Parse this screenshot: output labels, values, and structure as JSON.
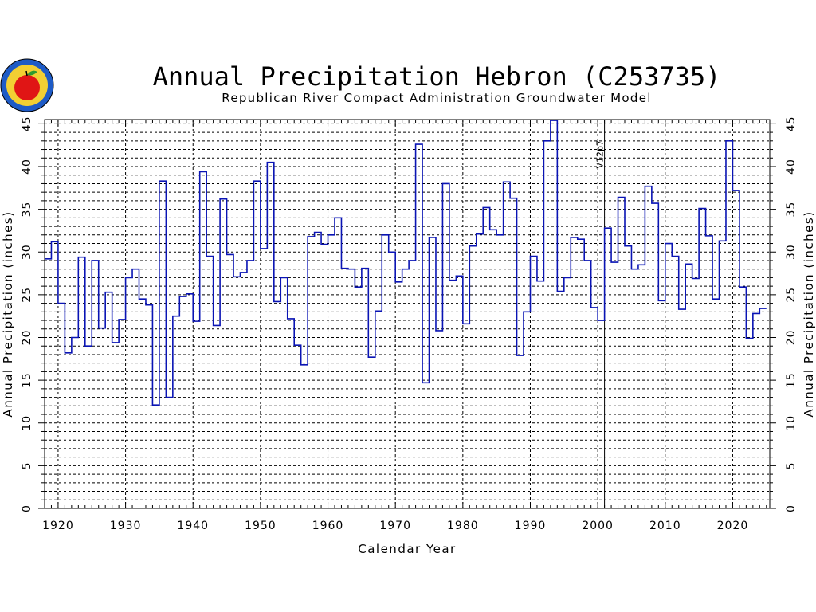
{
  "colors": {
    "series": "#0a14b4",
    "grid": "#000000",
    "background": "#ffffff"
  },
  "logo": {
    "icon": "apple-seal-icon"
  },
  "chart_data": {
    "type": "line",
    "step": true,
    "title": "Annual Precipitation Hebron (C253735)",
    "subtitle": "Republican River Compact Administration Groundwater Model",
    "xlabel": "Calendar Year",
    "ylabel": "Annual Precipitation (inches)",
    "ylabel_right": "Annual Precipitation (inches)",
    "xlim": [
      1918,
      2025.5
    ],
    "ylim": [
      0,
      45.5
    ],
    "x_ticks": [
      1920,
      1930,
      1940,
      1950,
      1960,
      1970,
      1980,
      1990,
      2000,
      2010,
      2020
    ],
    "y_ticks": [
      0,
      5,
      10,
      15,
      20,
      25,
      30,
      35,
      40,
      45
    ],
    "grid": true,
    "annotation": {
      "x": 2001,
      "label": "V12p7"
    },
    "x": [
      1918,
      1919,
      1920,
      1921,
      1922,
      1923,
      1924,
      1925,
      1926,
      1927,
      1928,
      1929,
      1930,
      1931,
      1932,
      1933,
      1934,
      1935,
      1936,
      1937,
      1938,
      1939,
      1940,
      1941,
      1942,
      1943,
      1944,
      1945,
      1946,
      1947,
      1948,
      1949,
      1950,
      1951,
      1952,
      1953,
      1954,
      1955,
      1956,
      1957,
      1958,
      1959,
      1960,
      1961,
      1962,
      1963,
      1964,
      1965,
      1966,
      1967,
      1968,
      1969,
      1970,
      1971,
      1972,
      1973,
      1974,
      1975,
      1976,
      1977,
      1978,
      1979,
      1980,
      1981,
      1982,
      1983,
      1984,
      1985,
      1986,
      1987,
      1988,
      1989,
      1990,
      1991,
      1992,
      1993,
      1994,
      1995,
      1996,
      1997,
      1998,
      1999,
      2000,
      2001,
      2002,
      2003,
      2004,
      2005,
      2006,
      2007,
      2008,
      2009,
      2010,
      2011,
      2012,
      2013,
      2014,
      2015,
      2016,
      2017,
      2018,
      2019,
      2020,
      2021,
      2022,
      2023,
      2024
    ],
    "series": [
      {
        "values": [
          29.2,
          31.2,
          24.0,
          18.2,
          20.0,
          29.4,
          19.0,
          29.0,
          21.1,
          25.3,
          19.4,
          22.1,
          27.0,
          28.0,
          24.5,
          23.8,
          12.1,
          38.3,
          13.0,
          22.5,
          24.8,
          25.1,
          21.9,
          39.4,
          29.5,
          21.4,
          36.2,
          29.7,
          27.1,
          27.6,
          29.0,
          38.3,
          30.4,
          40.5,
          24.2,
          27.0,
          22.2,
          19.1,
          16.8,
          31.8,
          32.3,
          30.9,
          32.0,
          34.0,
          28.1,
          28.0,
          25.9,
          28.1,
          17.7,
          23.1,
          32.0,
          30.0,
          26.5,
          28.0,
          29.0,
          42.6,
          14.7,
          31.7,
          20.8,
          38.0,
          26.7,
          27.2,
          21.6,
          30.7,
          32.1,
          35.2,
          32.6,
          32.0,
          38.2,
          36.3,
          17.9,
          23.0,
          29.5,
          26.6,
          43.0,
          45.4,
          25.4,
          27.0,
          31.7,
          31.5,
          29.0,
          23.5,
          22.0,
          32.8,
          28.8,
          36.4,
          30.7,
          28.0,
          28.5,
          37.7,
          35.7,
          24.3,
          31.0,
          29.5,
          23.3,
          28.6,
          26.9,
          35.1,
          31.9,
          24.5,
          31.3,
          43.0,
          37.2,
          25.9,
          19.9,
          22.8,
          23.4
        ]
      }
    ]
  }
}
